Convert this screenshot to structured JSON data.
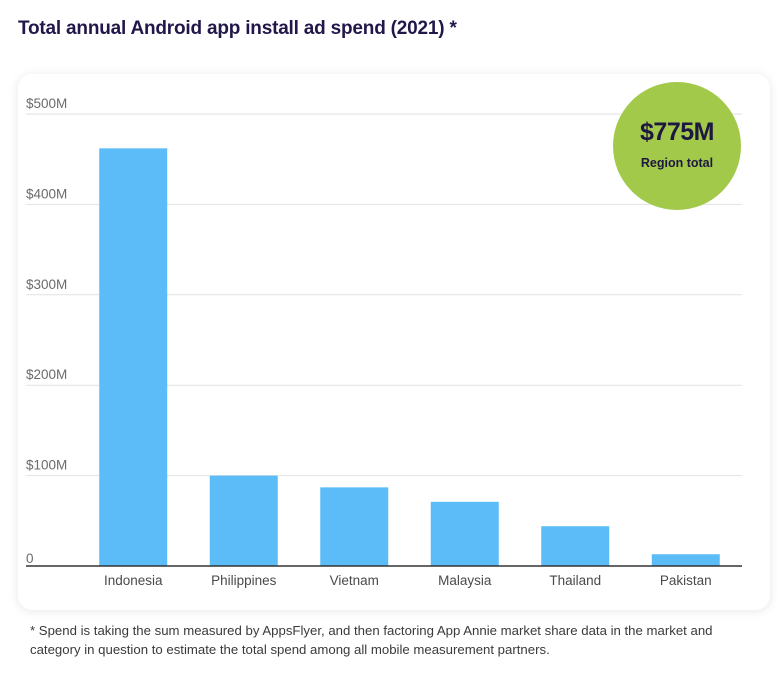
{
  "colors": {
    "bar": "#5bbcf8",
    "badge": "#a2c94a",
    "title": "#23174a"
  },
  "badge": {
    "value": "$775M",
    "label": "Region total"
  },
  "footnote": "* Spend is taking the sum measured by AppsFlyer, and then factoring App Annie market share data in the market and category in question to estimate the total spend among all mobile measurement partners.",
  "chart_data": {
    "type": "bar",
    "title": "Total annual Android app install ad spend (2021) *",
    "xlabel": "",
    "ylabel": "",
    "categories": [
      "Indonesia",
      "Philippines",
      "Vietnam",
      "Malaysia",
      "Thailand",
      "Pakistan"
    ],
    "values": [
      462,
      100,
      87,
      71,
      44,
      13
    ],
    "ylim": [
      0,
      500
    ],
    "yticks": [
      0,
      100,
      200,
      300,
      400,
      500
    ],
    "ytick_labels": [
      "0",
      "$100M",
      "$200M",
      "$300M",
      "$400M",
      "$500M"
    ],
    "grid": true
  }
}
